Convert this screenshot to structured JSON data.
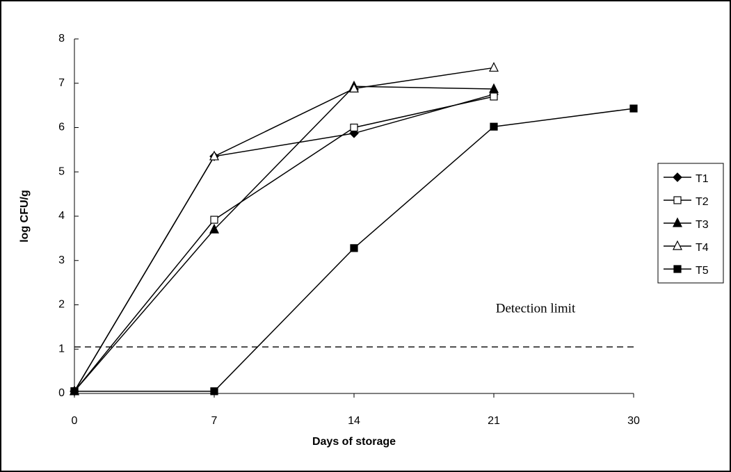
{
  "chart_data": {
    "type": "line",
    "x_label": "Days of storage",
    "y_label": "log CFU/g",
    "categories": [
      "0",
      "7",
      "14",
      "21",
      "30"
    ],
    "series": [
      {
        "name": "T1",
        "color": "#000000",
        "marker": "diamond",
        "values": [
          0.05,
          5.35,
          5.87,
          6.75,
          null
        ]
      },
      {
        "name": "T2",
        "color": "#000000",
        "marker": "open-square",
        "values": [
          0.05,
          3.92,
          6.0,
          6.7,
          null
        ]
      },
      {
        "name": "T3",
        "color": "#000000",
        "marker": "triangle",
        "values": [
          0.05,
          3.7,
          6.93,
          6.87,
          null
        ]
      },
      {
        "name": "T4",
        "color": "#000000",
        "marker": "open-triangle",
        "values": [
          0.05,
          5.35,
          6.88,
          7.35,
          null
        ]
      },
      {
        "name": "T5",
        "color": "#000000",
        "marker": "square",
        "values": [
          0.05,
          0.05,
          3.28,
          6.02,
          6.43
        ]
      }
    ],
    "annotations": [
      {
        "text": "Detection limit",
        "value": 1.05
      }
    ],
    "ylim": [
      0,
      8
    ],
    "yticks": [
      0,
      1,
      2,
      3,
      4,
      5,
      6,
      7,
      8
    ],
    "legend": "right",
    "grid": false
  }
}
